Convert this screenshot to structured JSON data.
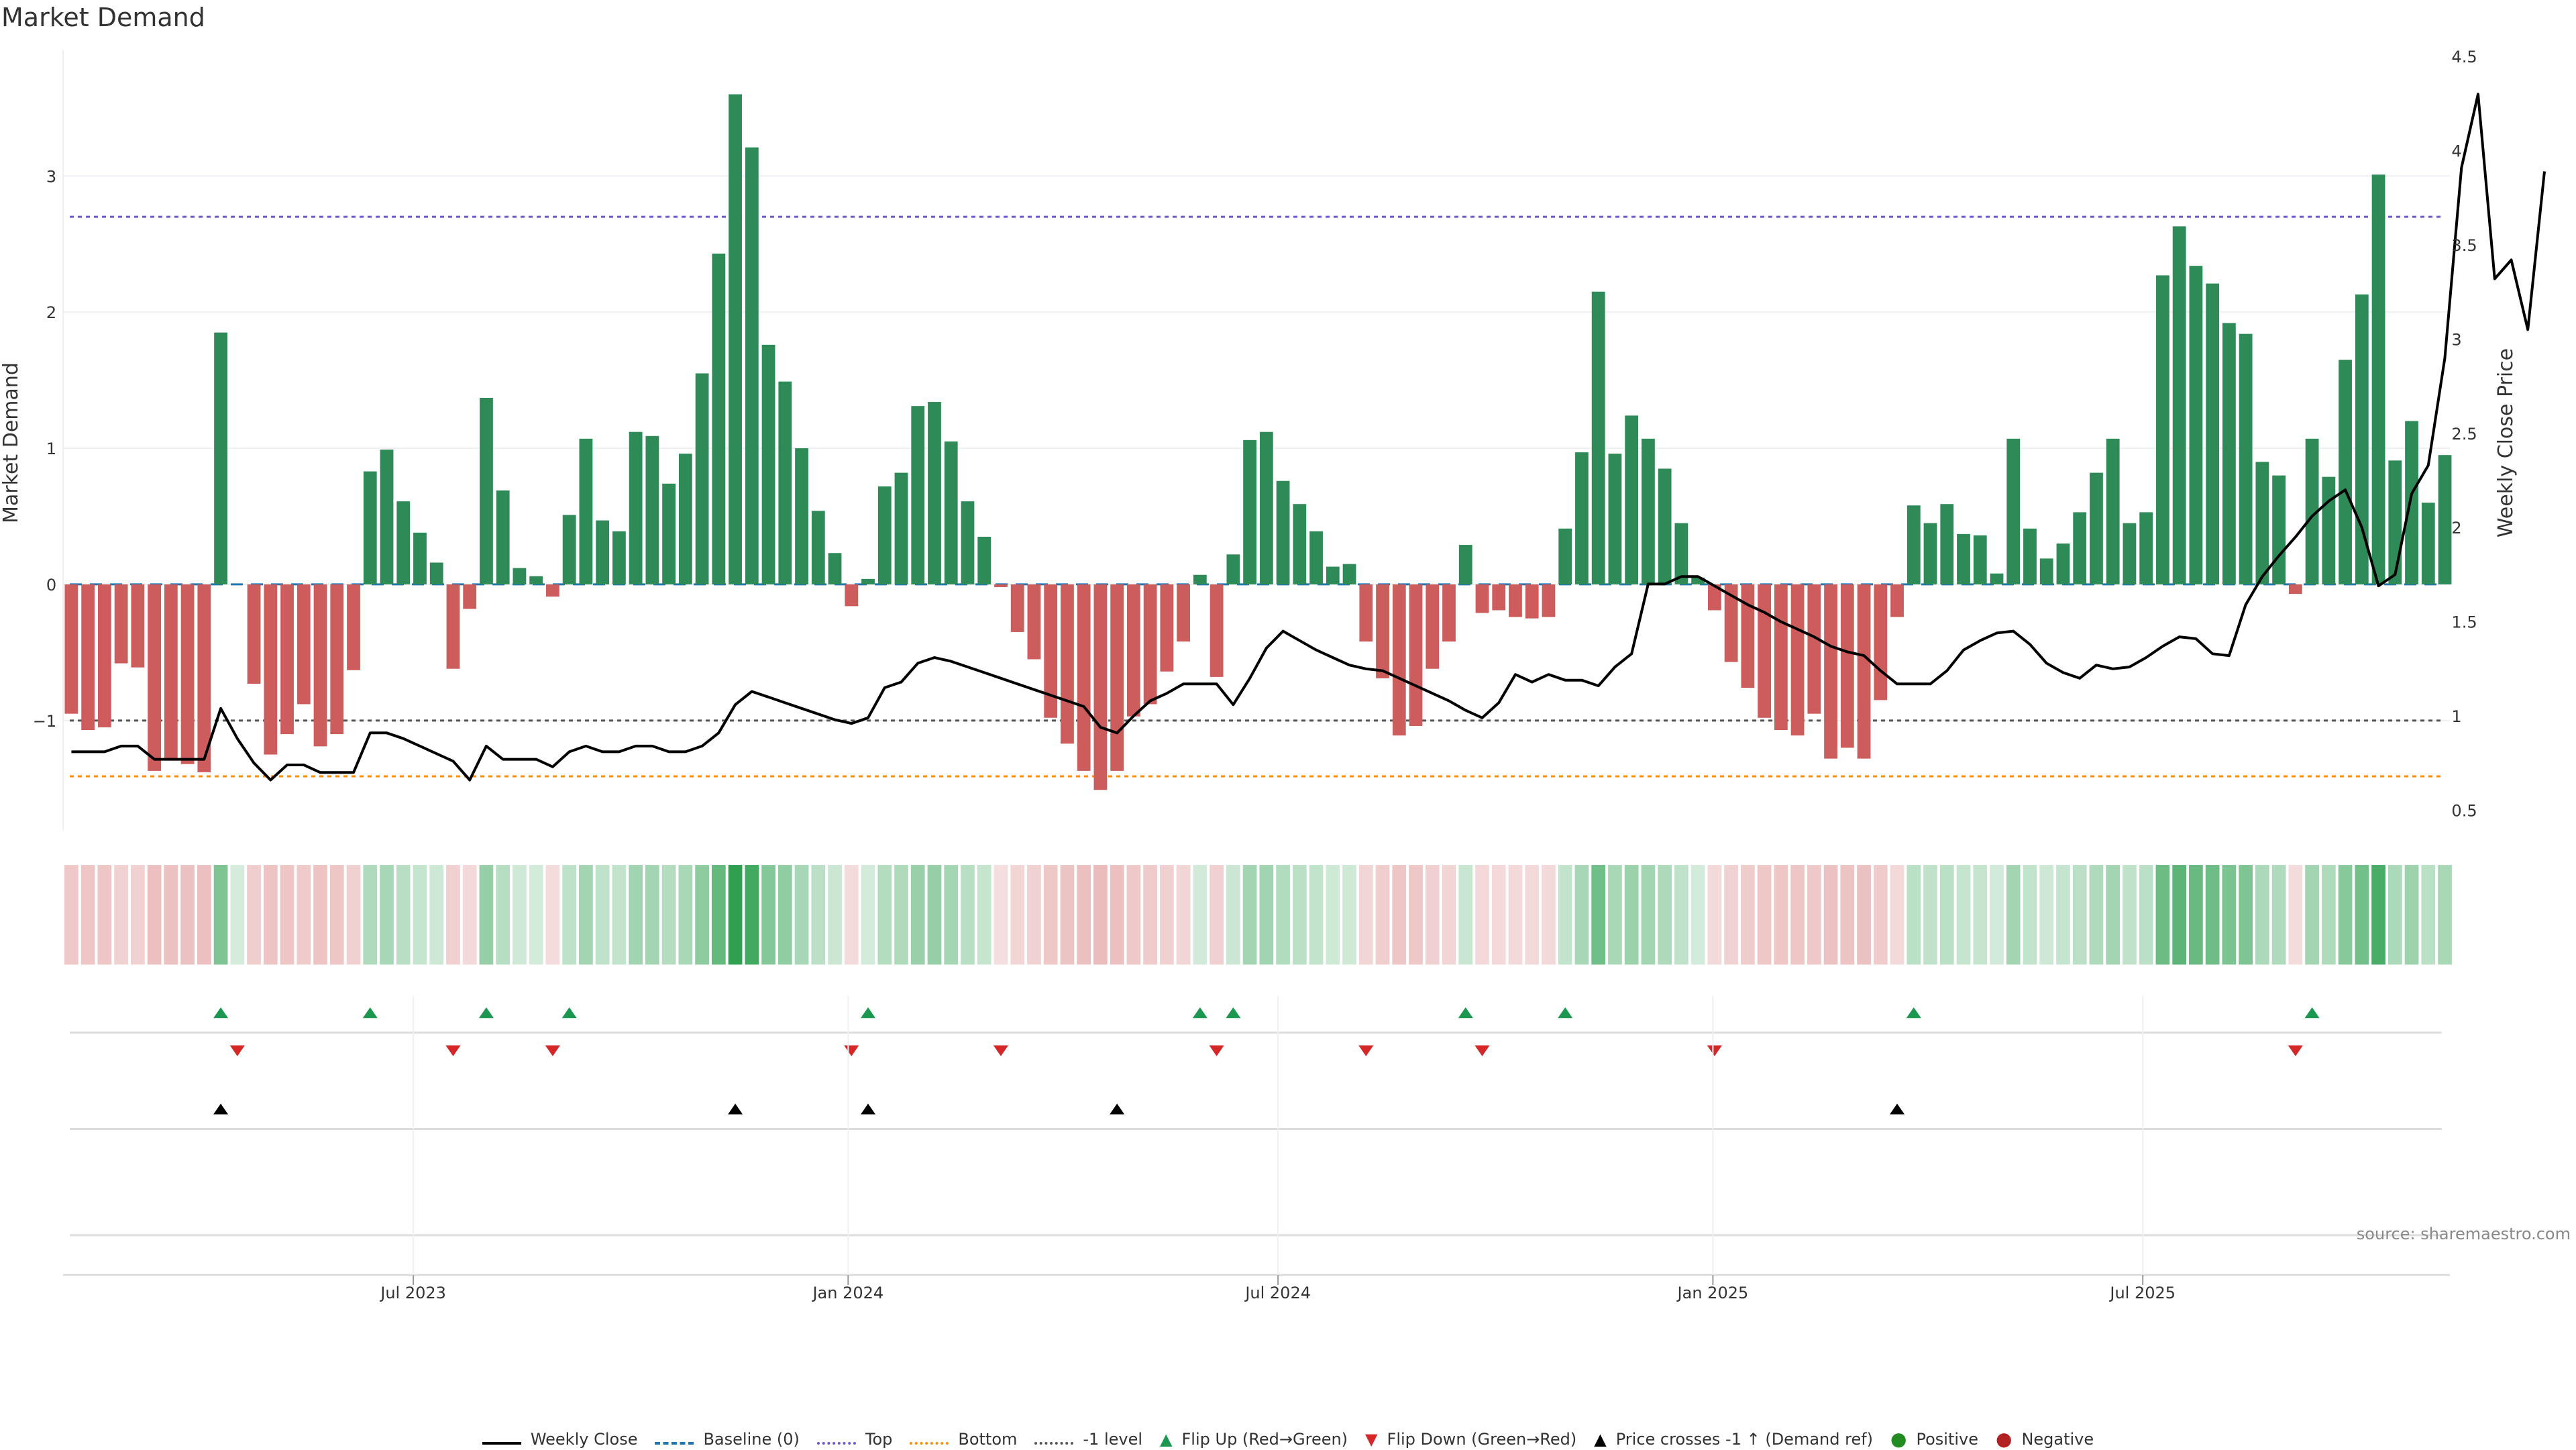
{
  "title": "Market Demand",
  "source": "source: sharemaestro.com",
  "colors": {
    "positive_bar": "#2e8b57",
    "negative_bar": "#cd5c5c",
    "price_line": "#000000",
    "baseline": "#1f77b4",
    "top": "#6a5acd",
    "bottom": "#ff8c00",
    "minus_one": "#555555",
    "flip_up": "#1a9850",
    "flip_down": "#d62728",
    "price_cross": "#000000",
    "positive_dot": "#228b22",
    "negative_dot": "#b22222"
  },
  "legend": [
    {
      "key": "weekly_close",
      "label": "Weekly Close"
    },
    {
      "key": "baseline",
      "label": "Baseline (0)"
    },
    {
      "key": "top",
      "label": "Top"
    },
    {
      "key": "bottom",
      "label": "Bottom"
    },
    {
      "key": "minus_one",
      "label": "-1 level"
    },
    {
      "key": "flip_up",
      "label": "Flip Up (Red→Green)"
    },
    {
      "key": "flip_down",
      "label": "Flip Down (Green→Red)"
    },
    {
      "key": "price_cross",
      "label": "Price crosses -1 ↑ (Demand ref)"
    },
    {
      "key": "positive",
      "label": "Positive"
    },
    {
      "key": "negative",
      "label": "Negative"
    }
  ],
  "chart_data": {
    "type": "bar",
    "title": "Market Demand",
    "xlabel": "",
    "ylabel": "Market Demand",
    "y2label": "Weekly Close Price",
    "ylim": [
      -1.8,
      3.9
    ],
    "y2lim": [
      0.4,
      4.5
    ],
    "yticks": [
      -1,
      0,
      1,
      2,
      3
    ],
    "y2ticks": [
      0.5,
      1,
      1.5,
      2,
      2.5,
      3,
      3.5,
      4,
      4.5
    ],
    "xtick_labels": [
      "Jul 2023",
      "Jan 2024",
      "Jul 2024",
      "Jan 2025",
      "Jul 2025"
    ],
    "xtick_bar_index": [
      20.6,
      46.8,
      72.7,
      98.9,
      124.8
    ],
    "reference_lines": {
      "baseline": 0,
      "top": 2.7,
      "bottom": -1.41,
      "minus_one": -1
    },
    "demand": [
      -0.95,
      -1.07,
      -1.05,
      -0.58,
      -0.61,
      -1.37,
      -1.28,
      -1.32,
      -1.38,
      1.85,
      0,
      -0.73,
      -1.25,
      -1.1,
      -0.88,
      -1.19,
      -1.1,
      -0.63,
      0.83,
      0.99,
      0.61,
      0.38,
      0.16,
      -0.62,
      -0.18,
      1.37,
      0.69,
      0.12,
      0.06,
      -0.09,
      0.51,
      1.07,
      0.47,
      0.39,
      1.12,
      1.09,
      0.74,
      0.96,
      1.55,
      2.43,
      3.6,
      3.21,
      1.76,
      1.49,
      1.0,
      0.54,
      0.23,
      -0.16,
      0.04,
      0.72,
      0.82,
      1.31,
      1.34,
      1.05,
      0.61,
      0.35,
      -0.02,
      -0.35,
      -0.55,
      -0.98,
      -1.17,
      -1.37,
      -1.51,
      -1.37,
      -0.97,
      -0.88,
      -0.64,
      -0.42,
      0.07,
      -0.68,
      0.22,
      1.06,
      1.12,
      0.76,
      0.59,
      0.39,
      0.13,
      0.15,
      -0.42,
      -0.69,
      -1.11,
      -1.04,
      -0.62,
      -0.42,
      0.29,
      -0.21,
      -0.19,
      -0.24,
      -0.25,
      -0.24,
      0.41,
      0.97,
      2.15,
      0.96,
      1.24,
      1.07,
      0.85,
      0.45,
      0.05,
      -0.19,
      -0.57,
      -0.76,
      -0.98,
      -1.07,
      -1.11,
      -0.95,
      -1.28,
      -1.2,
      -1.28,
      -0.85,
      -0.24,
      0.58,
      0.45,
      0.59,
      0.37,
      0.36,
      0.08,
      1.07,
      0.41,
      0.19,
      0.3,
      0.53,
      0.82,
      1.07,
      0.45,
      0.53,
      2.27,
      2.63,
      2.34,
      2.21,
      1.92,
      1.84,
      0.9,
      0.8,
      -0.07,
      1.07,
      0.79,
      1.65,
      2.13,
      3.01,
      0.91,
      1.2,
      0.6,
      0.95
    ],
    "weekly_close": [
      0.81,
      0.81,
      0.81,
      0.84,
      0.84,
      0.77,
      0.77,
      0.77,
      0.77,
      1.04,
      0.88,
      0.75,
      0.66,
      0.74,
      0.74,
      0.7,
      0.7,
      0.7,
      0.91,
      0.91,
      0.88,
      0.84,
      0.8,
      0.76,
      0.66,
      0.84,
      0.77,
      0.77,
      0.77,
      0.73,
      0.81,
      0.84,
      0.81,
      0.81,
      0.84,
      0.84,
      0.81,
      0.81,
      0.84,
      0.91,
      1.06,
      1.13,
      1.1,
      1.07,
      1.04,
      1.01,
      0.98,
      0.96,
      0.99,
      1.15,
      1.18,
      1.28,
      1.31,
      1.29,
      1.26,
      1.23,
      1.2,
      1.17,
      1.14,
      1.11,
      1.08,
      1.05,
      0.94,
      0.91,
      1.0,
      1.08,
      1.12,
      1.17,
      1.17,
      1.17,
      1.06,
      1.2,
      1.36,
      1.45,
      1.4,
      1.35,
      1.31,
      1.27,
      1.25,
      1.24,
      1.2,
      1.16,
      1.12,
      1.08,
      1.03,
      0.99,
      1.07,
      1.22,
      1.18,
      1.22,
      1.19,
      1.19,
      1.16,
      1.26,
      1.33,
      1.7,
      1.7,
      1.74,
      1.74,
      1.69,
      1.64,
      1.59,
      1.55,
      1.5,
      1.46,
      1.42,
      1.37,
      1.34,
      1.32,
      1.24,
      1.17,
      1.17,
      1.17,
      1.24,
      1.35,
      1.4,
      1.44,
      1.45,
      1.38,
      1.28,
      1.23,
      1.2,
      1.27,
      1.25,
      1.26,
      1.31,
      1.37,
      1.42,
      1.41,
      1.33,
      1.32,
      1.59,
      1.74,
      1.85,
      1.95,
      2.06,
      2.14,
      2.2,
      2.0,
      1.69,
      1.75,
      2.18,
      2.33,
      2.9,
      3.91,
      4.3,
      3.32,
      3.42,
      3.05,
      3.89
    ],
    "heat_intensity_note": "strip color per bar encodes demand sign and magnitude",
    "flip_up_index": [
      9,
      18,
      25,
      30,
      48,
      68,
      70,
      84,
      90,
      111,
      135
    ],
    "flip_down_index": [
      10,
      23,
      29,
      47,
      56,
      69,
      78,
      85,
      99,
      134
    ],
    "price_cross_index": [
      9,
      40,
      48,
      63,
      110
    ]
  }
}
